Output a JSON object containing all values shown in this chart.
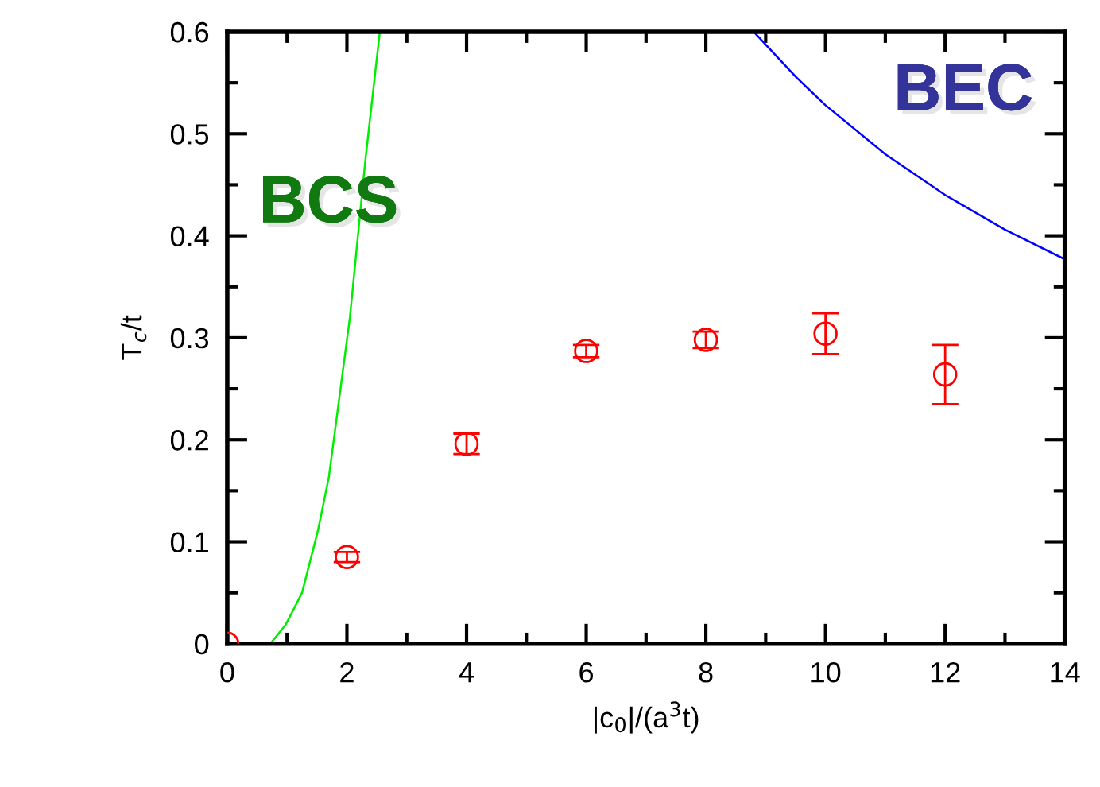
{
  "chart_data": {
    "type": "scatter",
    "xlabel": "|c$_{0}$|/(a$^{3}$t)",
    "ylabel": "T$_{c}$/t",
    "xlim": [
      0,
      14
    ],
    "xticks": [
      0,
      2,
      4,
      6,
      8,
      10,
      12,
      14
    ],
    "ylim": [
      0,
      0.6
    ],
    "yticks": [
      0,
      0.1,
      0.2,
      0.3,
      0.4,
      0.5,
      0.6
    ],
    "grid": false,
    "series": [
      {
        "color": "#ff0000",
        "marker": "circle",
        "x": [
          0,
          2,
          4,
          6,
          8,
          10,
          12
        ],
        "values": [
          0,
          0.085,
          0.196,
          0.287,
          0.298,
          0.304,
          0.264
        ],
        "errors": [
          null,
          0.005,
          0.01,
          0.006,
          0.008,
          0.02,
          0.029
        ]
      },
      {
        "type": "line",
        "color": "#00ee00",
        "marker": "none",
        "line_style": "solid",
        "x": [
          0.72,
          0.98,
          1.25,
          1.52,
          1.7,
          2.05,
          2.31,
          2.55
        ],
        "values": [
          0,
          0.019,
          0.05,
          0.112,
          0.164,
          0.32,
          0.475,
          0.6
        ]
      },
      {
        "type": "line",
        "color": "#0000ff",
        "marker": "none",
        "line_style": "solid",
        "x": [
          8.8,
          9.5,
          10,
          11,
          12,
          13,
          14
        ],
        "values": [
          0.6,
          0.556,
          0.528,
          0.48,
          0.44,
          0.406,
          0.377
        ]
      }
    ],
    "annotations": [
      "BCS",
      "BEC"
    ]
  }
}
